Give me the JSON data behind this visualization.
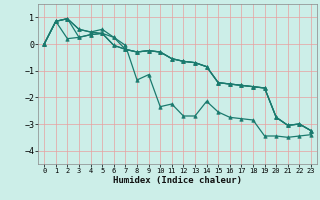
{
  "xlabel": "Humidex (Indice chaleur)",
  "xlim": [
    -0.5,
    23.5
  ],
  "ylim": [
    -4.5,
    1.5
  ],
  "yticks": [
    -4,
    -3,
    -2,
    -1,
    0,
    1
  ],
  "xticks": [
    0,
    1,
    2,
    3,
    4,
    5,
    6,
    7,
    8,
    9,
    10,
    11,
    12,
    13,
    14,
    15,
    16,
    17,
    18,
    19,
    20,
    21,
    22,
    23
  ],
  "bg_color": "#cceee8",
  "line_color": "#1a7a6e",
  "grid_color": "#e8a0a0",
  "series": [
    [
      0.0,
      0.85,
      0.95,
      0.55,
      0.45,
      0.4,
      0.25,
      -0.2,
      -0.3,
      -0.25,
      -0.3,
      -0.55,
      -0.65,
      -0.7,
      -0.85,
      -1.45,
      -1.5,
      -1.55,
      -1.6,
      -1.65,
      -2.75,
      -3.05,
      -3.0,
      -3.25
    ],
    [
      0.0,
      0.85,
      0.95,
      0.25,
      0.35,
      0.4,
      -0.05,
      -0.2,
      -0.3,
      -0.25,
      -0.3,
      -0.55,
      -0.65,
      -0.7,
      -0.85,
      -1.45,
      -1.5,
      -1.55,
      -1.6,
      -1.65,
      -2.75,
      -3.05,
      -3.0,
      -3.25
    ],
    [
      0.0,
      0.85,
      0.2,
      0.25,
      0.35,
      0.4,
      -0.05,
      -0.2,
      -0.3,
      -0.25,
      -0.3,
      -0.55,
      -0.65,
      -0.7,
      -0.85,
      -1.45,
      -1.5,
      -1.55,
      -1.6,
      -1.65,
      -2.75,
      -3.05,
      -3.0,
      -3.25
    ],
    [
      0.0,
      0.85,
      0.95,
      0.55,
      0.45,
      0.55,
      0.25,
      -0.05,
      -1.35,
      -1.15,
      -2.35,
      -2.25,
      -2.7,
      -2.7,
      -2.15,
      -2.55,
      -2.75,
      -2.8,
      -2.85,
      -3.45,
      -3.45,
      -3.5,
      -3.45,
      -3.4
    ]
  ]
}
